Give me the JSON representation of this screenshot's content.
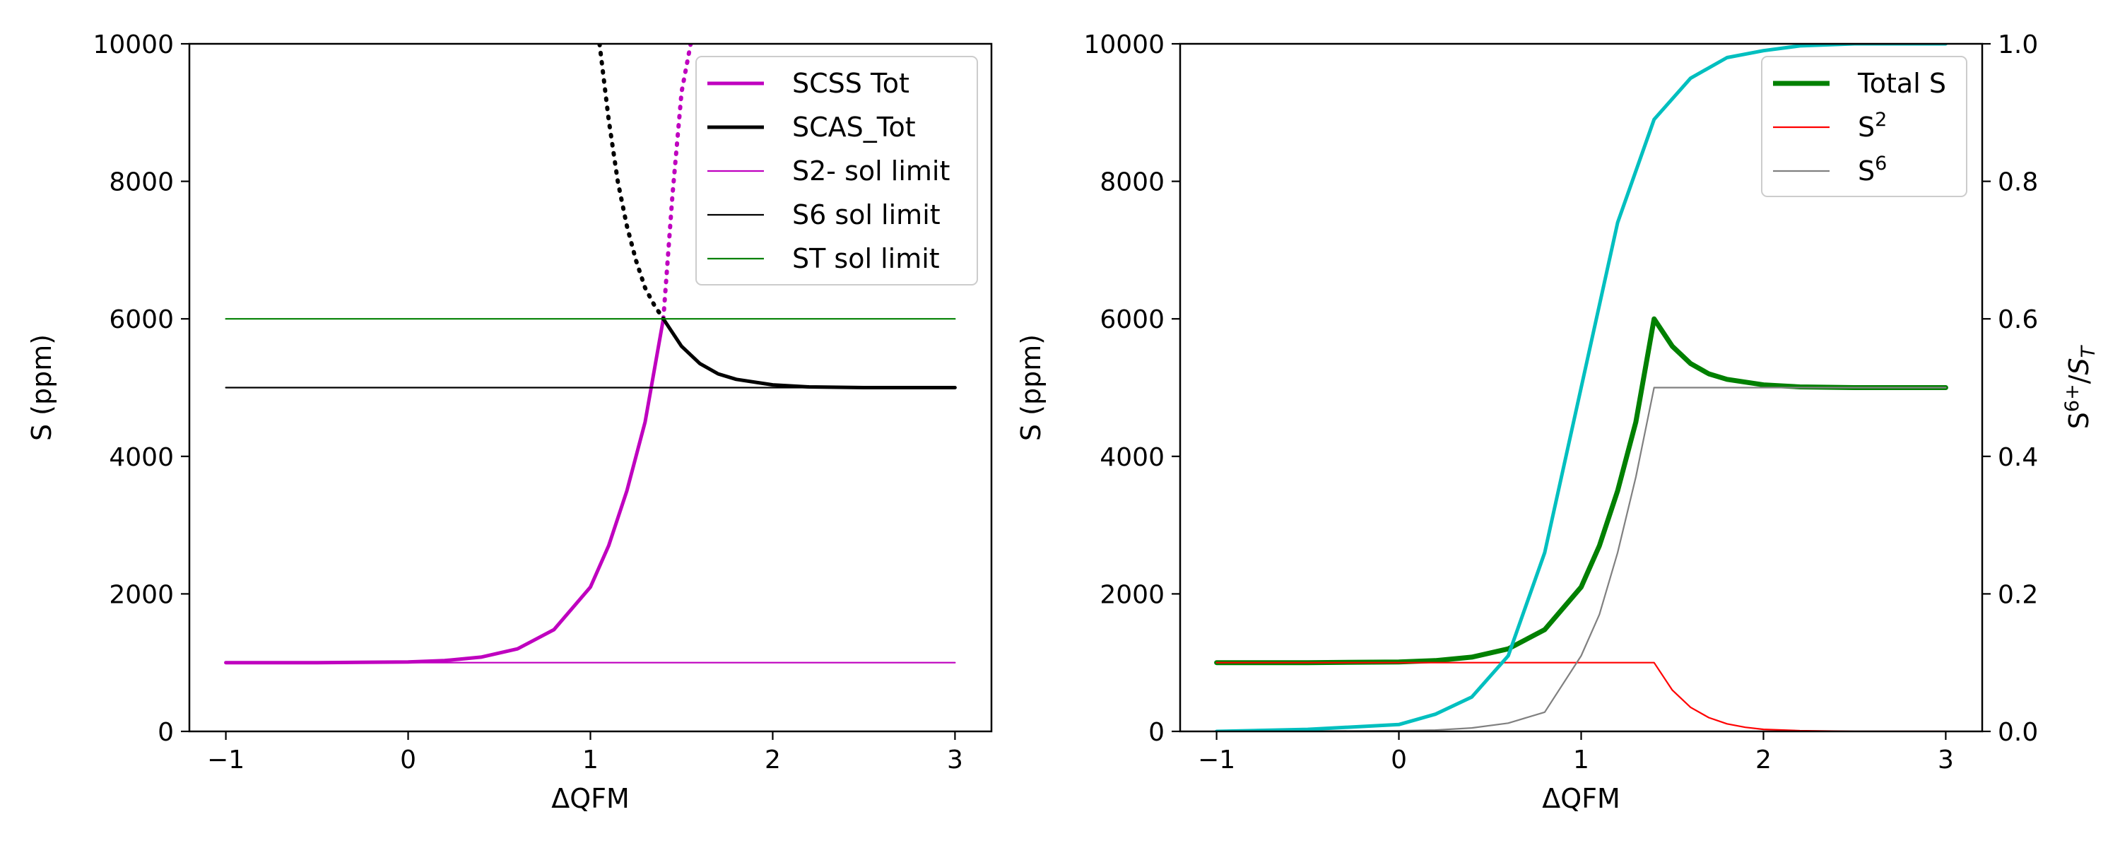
{
  "chart_data": [
    {
      "type": "line",
      "xlabel": "ΔQFM",
      "ylabel": "S (ppm)",
      "xlim": [
        -1.2,
        3.2
      ],
      "ylim": [
        0,
        10000
      ],
      "xticks": [
        -1,
        0,
        1,
        2,
        3
      ],
      "xtick_labels": [
        "−1",
        "0",
        "1",
        "2",
        "3"
      ],
      "yticks": [
        0,
        2000,
        4000,
        6000,
        8000,
        10000
      ],
      "ytick_labels": [
        "0",
        "2000",
        "4000",
        "6000",
        "8000",
        "10000"
      ],
      "legend": {
        "placement": "top-right",
        "entries": [
          {
            "label": "SCSS Tot",
            "color": "#bf00bf",
            "style": "thick"
          },
          {
            "label": "SCAS_Tot",
            "color": "#000000",
            "style": "thick"
          },
          {
            "label": "S2- sol limit",
            "color": "#bf00bf",
            "style": "thin"
          },
          {
            "label": "S6 sol limit",
            "color": "#000000",
            "style": "thin"
          },
          {
            "label": "ST sol limit",
            "color": "#008000",
            "style": "thin"
          }
        ]
      },
      "series": [
        {
          "name": "SCSS Tot",
          "color": "#bf00bf",
          "x": [
            -1,
            -0.5,
            0,
            0.2,
            0.4,
            0.6,
            0.8,
            1.0,
            1.1,
            1.2,
            1.3,
            1.4
          ],
          "y": [
            1000,
            1000,
            1010,
            1030,
            1080,
            1200,
            1480,
            2100,
            2700,
            3500,
            4500,
            6000
          ]
        },
        {
          "name": "SCSS Tot (continuation)",
          "color": "#bf00bf",
          "dashed": true,
          "x": [
            1.4,
            1.45,
            1.5,
            1.55
          ],
          "y": [
            6000,
            7800,
            9300,
            10000
          ]
        },
        {
          "name": "SCAS_Tot",
          "color": "#000000",
          "x": [
            1.4,
            1.5,
            1.6,
            1.7,
            1.8,
            2.0,
            2.2,
            2.5,
            3.0
          ],
          "y": [
            6000,
            5600,
            5350,
            5200,
            5120,
            5040,
            5010,
            5000,
            5000
          ]
        },
        {
          "name": "SCAS_Tot (continuation)",
          "color": "#000000",
          "dashed": true,
          "x": [
            1.05,
            1.1,
            1.15,
            1.2,
            1.25,
            1.3,
            1.35,
            1.4
          ],
          "y": [
            10000,
            8900,
            8000,
            7350,
            6850,
            6450,
            6200,
            6000
          ]
        },
        {
          "name": "S2- sol limit",
          "color": "#bf00bf",
          "x": [
            -1,
            3
          ],
          "y": [
            1000,
            1000
          ]
        },
        {
          "name": "S6 sol limit",
          "color": "#000000",
          "x": [
            -1,
            3
          ],
          "y": [
            5000,
            5000
          ]
        },
        {
          "name": "ST sol limit",
          "color": "#008000",
          "x": [
            -1,
            3
          ],
          "y": [
            6000,
            6000
          ]
        }
      ]
    },
    {
      "type": "line",
      "xlabel": "ΔQFM",
      "ylabel": "S (ppm)",
      "ylabel_right": "S6+/ST",
      "xlim": [
        -1.2,
        3.2
      ],
      "ylim": [
        0,
        10000
      ],
      "ylim_right": [
        0,
        1
      ],
      "xticks": [
        -1,
        0,
        1,
        2,
        3
      ],
      "xtick_labels": [
        "−1",
        "0",
        "1",
        "2",
        "3"
      ],
      "yticks": [
        0,
        2000,
        4000,
        6000,
        8000,
        10000
      ],
      "ytick_labels": [
        "0",
        "2000",
        "4000",
        "6000",
        "8000",
        "10000"
      ],
      "yticks_right": [
        0.0,
        0.2,
        0.4,
        0.6,
        0.8,
        1.0
      ],
      "ytick_labels_right": [
        "0.0",
        "0.2",
        "0.4",
        "0.6",
        "0.8",
        "1.0"
      ],
      "legend": {
        "placement": "top-right",
        "entries": [
          {
            "label": "Total S",
            "color": "#008000",
            "style": "thick"
          },
          {
            "label": "S",
            "sup": "2",
            "color": "#ff0000",
            "style": "thin"
          },
          {
            "label": "S",
            "sup": "6",
            "color": "#808080",
            "style": "thin"
          }
        ]
      },
      "series": [
        {
          "name": "Total S",
          "color": "#008000",
          "x": [
            -1,
            -0.5,
            0,
            0.2,
            0.4,
            0.6,
            0.8,
            1.0,
            1.1,
            1.2,
            1.3,
            1.4,
            1.5,
            1.6,
            1.7,
            1.8,
            2.0,
            2.2,
            2.5,
            3.0
          ],
          "y": [
            1000,
            1000,
            1010,
            1030,
            1080,
            1200,
            1480,
            2100,
            2700,
            3500,
            4500,
            6000,
            5600,
            5350,
            5200,
            5120,
            5040,
            5010,
            5000,
            5000
          ]
        },
        {
          "name": "S2",
          "color": "#ff0000",
          "x": [
            -1,
            1.4,
            1.5,
            1.6,
            1.7,
            1.8,
            1.9,
            2.0,
            2.2,
            2.5,
            3.0
          ],
          "y": [
            1000,
            1000,
            600,
            350,
            200,
            110,
            60,
            30,
            10,
            0,
            0
          ]
        },
        {
          "name": "S6",
          "color": "#808080",
          "x": [
            -1,
            0,
            0.2,
            0.4,
            0.6,
            0.8,
            1.0,
            1.1,
            1.2,
            1.3,
            1.4,
            3.0
          ],
          "y": [
            0,
            10,
            20,
            50,
            120,
            280,
            1100,
            1700,
            2600,
            3700,
            5000,
            5000
          ]
        },
        {
          "name": "S6+/ST",
          "color": "#00bfbf",
          "axis": "right",
          "x": [
            -1,
            -0.5,
            0,
            0.2,
            0.4,
            0.6,
            0.8,
            1.0,
            1.2,
            1.4,
            1.6,
            1.8,
            2.0,
            2.2,
            2.5,
            3.0
          ],
          "y": [
            0.0,
            0.003,
            0.01,
            0.025,
            0.05,
            0.11,
            0.26,
            0.5,
            0.74,
            0.89,
            0.95,
            0.98,
            0.99,
            0.997,
            1.0,
            1.0
          ]
        }
      ]
    }
  ]
}
